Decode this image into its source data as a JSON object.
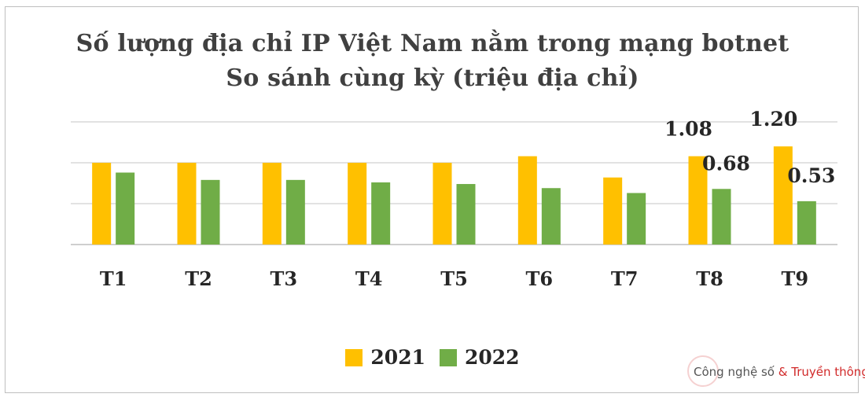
{
  "chart_data": {
    "type": "bar",
    "title": "Số lượng địa chỉ IP Việt Nam nằm trong mạng botnet",
    "subtitle": "So sánh cùng kỳ (triệu địa chỉ)",
    "categories": [
      "T1",
      "T2",
      "T3",
      "T4",
      "T5",
      "T6",
      "T7",
      "T8",
      "T9"
    ],
    "series": [
      {
        "name": "2021",
        "color": "#ffc000",
        "values": [
          1.0,
          1.0,
          1.0,
          1.0,
          1.0,
          1.08,
          0.82,
          1.08,
          1.2
        ]
      },
      {
        "name": "2022",
        "color": "#70ad47",
        "values": [
          0.88,
          0.79,
          0.79,
          0.76,
          0.74,
          0.69,
          0.63,
          0.68,
          0.53
        ]
      }
    ],
    "data_labels": [
      {
        "series": 0,
        "index": 7,
        "text": "1.08"
      },
      {
        "series": 1,
        "index": 7,
        "text": "0.68"
      },
      {
        "series": 0,
        "index": 8,
        "text": "1.20"
      },
      {
        "series": 1,
        "index": 8,
        "text": "0.53"
      }
    ],
    "ylim": [
      0,
      1.5
    ],
    "grid": true,
    "legend": "bottom"
  },
  "watermark": {
    "text_a": "Công nghệ số",
    "text_b": "& Truyền thông"
  }
}
